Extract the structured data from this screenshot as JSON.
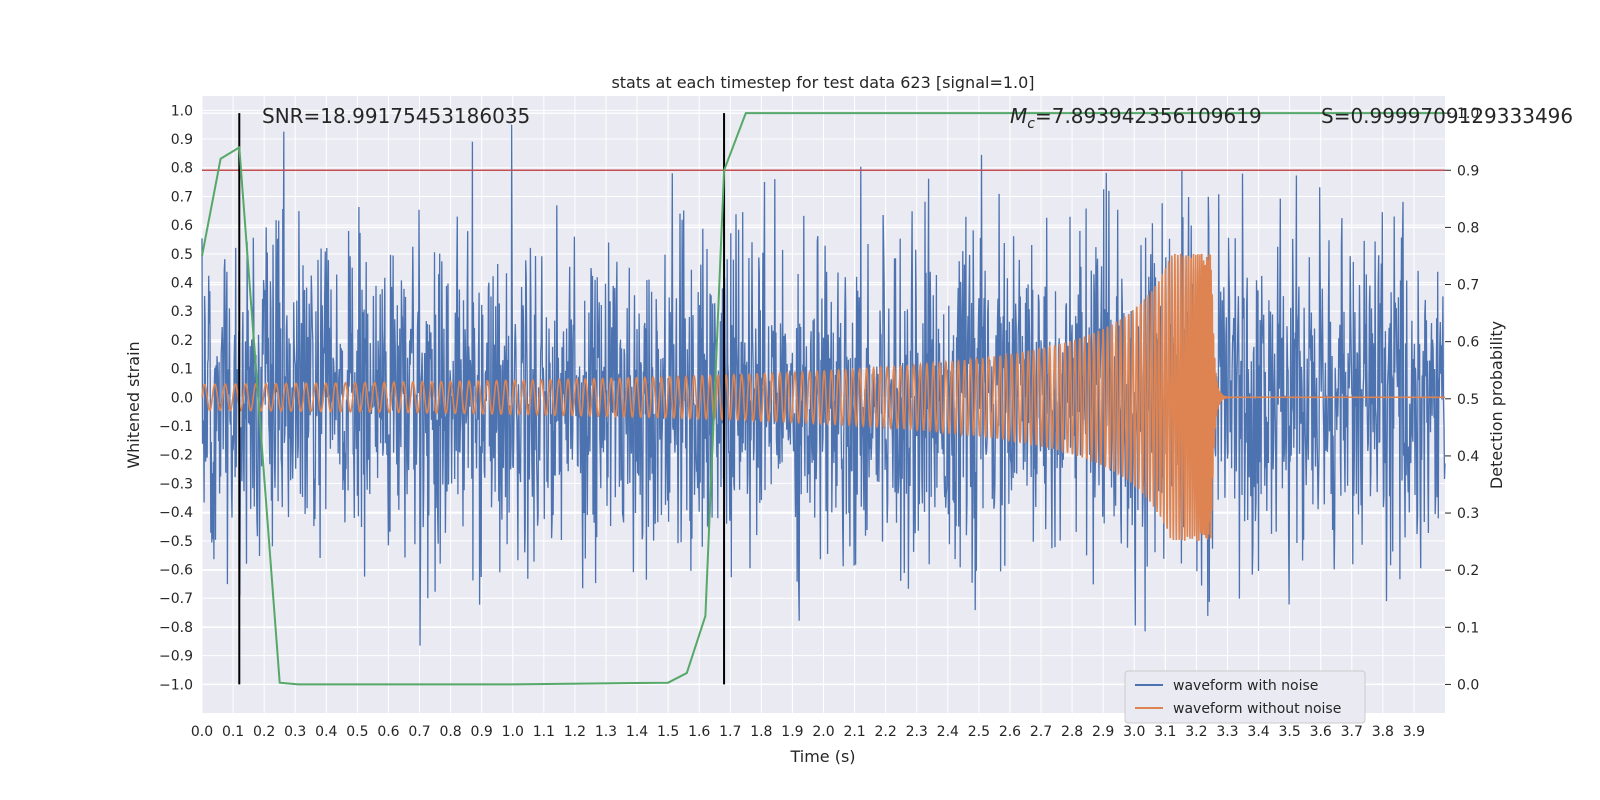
{
  "chart_data": {
    "type": "line",
    "title": "stats at each timestep for test data 623 [signal=1.0]",
    "xlabel": "Time (s)",
    "ylabel_left": "Whitened strain",
    "ylabel_right": "Detection probability",
    "xlim": [
      0.0,
      4.0
    ],
    "ylim_left": [
      -1.1,
      1.05
    ],
    "ylim_right": [
      -0.05,
      1.03
    ],
    "x_ticks": [
      "0.0",
      "0.1",
      "0.2",
      "0.3",
      "0.4",
      "0.5",
      "0.6",
      "0.7",
      "0.8",
      "0.9",
      "1.0",
      "1.1",
      "1.2",
      "1.3",
      "1.4",
      "1.5",
      "1.6",
      "1.7",
      "1.8",
      "1.9",
      "2.0",
      "2.1",
      "2.2",
      "2.3",
      "2.4",
      "2.5",
      "2.6",
      "2.7",
      "2.8",
      "2.9",
      "3.0",
      "3.1",
      "3.2",
      "3.3",
      "3.4",
      "3.5",
      "3.6",
      "3.7",
      "3.8",
      "3.9"
    ],
    "y_left_ticks": [
      "1.0",
      "0.9",
      "0.8",
      "0.7",
      "0.6",
      "0.5",
      "0.4",
      "0.3",
      "0.2",
      "0.1",
      "0.0",
      "−0.1",
      "−0.2",
      "−0.3",
      "−0.4",
      "−0.5",
      "−0.6",
      "−0.7",
      "−0.8",
      "−0.9",
      "−1.0"
    ],
    "y_right_ticks": [
      "1.0",
      "0.9",
      "0.8",
      "0.7",
      "0.6",
      "0.5",
      "0.4",
      "0.3",
      "0.2",
      "0.1",
      "0.0"
    ],
    "annotations": {
      "snr": "SNR=18.99175453186035",
      "mc_symbol": "M",
      "mc_sub": "c",
      "mc_value": "=7.893942356109619",
      "s": "S=0.9999709129333496"
    },
    "threshold": {
      "value": 0.9,
      "axis": "right",
      "color": "#c44e52"
    },
    "vertical_markers": [
      0.12,
      1.68
    ],
    "series": [
      {
        "name": "waveform with noise",
        "color": "#4c72b0",
        "kind": "noise",
        "duration": 4.0,
        "samples": 2400,
        "std": 0.28,
        "clip": [
          -0.97,
          0.95
        ]
      },
      {
        "name": "waveform without noise",
        "color": "#dd8452",
        "kind": "chirp",
        "t_start": 0.0,
        "t_merger": 3.25,
        "amplitude_start": 0.045,
        "amplitude_peak": 0.5,
        "freq_start": 30,
        "freq_end": 150
      },
      {
        "name": "detection probability",
        "color": "#55a868",
        "axis": "right",
        "x": [
          0.0,
          0.06,
          0.12,
          0.25,
          0.31,
          1.0,
          1.5,
          1.56,
          1.62,
          1.68,
          1.75,
          2.0,
          3.0,
          4.0
        ],
        "y": [
          0.75,
          0.92,
          0.94,
          0.003,
          0.0,
          0.0,
          0.003,
          0.02,
          0.12,
          0.9,
          1.0,
          1.0,
          1.0,
          1.0
        ]
      }
    ],
    "legend_location": "lower-right"
  }
}
